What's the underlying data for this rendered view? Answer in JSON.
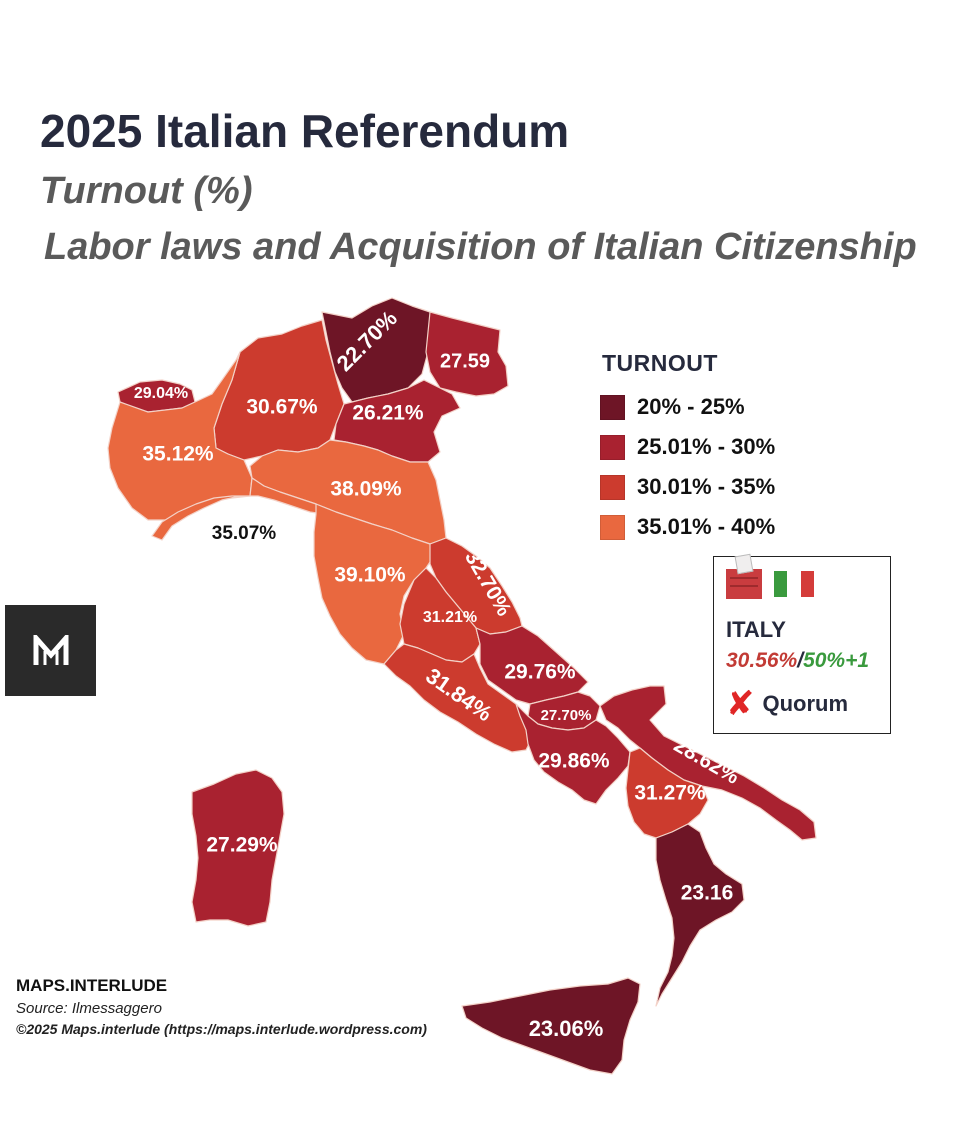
{
  "title": "2025 Italian Referendum",
  "subtitle": "Turnout (%)",
  "subtitle2": "Labor laws and Acquisition of Italian Citizenship",
  "legend": {
    "title": "TURNOUT",
    "items": [
      {
        "label": "20% - 25%",
        "color": "#6e1526"
      },
      {
        "label": "25.01% - 30%",
        "color": "#a92230"
      },
      {
        "label": "30.01% - 35%",
        "color": "#cc3b2e"
      },
      {
        "label": "35.01% - 40%",
        "color": "#e9683f"
      }
    ]
  },
  "regions": [
    {
      "name": "Trentino-Alto Adige",
      "label": "22.70%",
      "value": 22.7,
      "color": "#6e1526"
    },
    {
      "name": "Friuli-Venezia Giulia",
      "label": "27.59",
      "value": 27.59,
      "color": "#a92230"
    },
    {
      "name": "Aosta Valley",
      "label": "29.04%",
      "value": 29.04,
      "color": "#a92230"
    },
    {
      "name": "Lombardy",
      "label": "30.67%",
      "value": 30.67,
      "color": "#cc3b2e"
    },
    {
      "name": "Veneto",
      "label": "26.21%",
      "value": 26.21,
      "color": "#a92230"
    },
    {
      "name": "Piedmont",
      "label": "35.12%",
      "value": 35.12,
      "color": "#e9683f"
    },
    {
      "name": "Emilia-Romagna",
      "label": "38.09%",
      "value": 38.09,
      "color": "#e9683f"
    },
    {
      "name": "Liguria",
      "label": "35.07%",
      "value": 35.07,
      "color": "#e9683f"
    },
    {
      "name": "Tuscany",
      "label": "39.10%",
      "value": 39.1,
      "color": "#e9683f"
    },
    {
      "name": "Marche",
      "label": "32.70%",
      "value": 32.7,
      "color": "#cc3b2e"
    },
    {
      "name": "Umbria",
      "label": "31.21%",
      "value": 31.21,
      "color": "#cc3b2e"
    },
    {
      "name": "Lazio",
      "label": "31.84%",
      "value": 31.84,
      "color": "#cc3b2e"
    },
    {
      "name": "Abruzzo",
      "label": "29.76%",
      "value": 29.76,
      "color": "#a92230"
    },
    {
      "name": "Molise",
      "label": "27.70%",
      "value": 27.7,
      "color": "#a92230"
    },
    {
      "name": "Campania",
      "label": "29.86%",
      "value": 29.86,
      "color": "#a92230"
    },
    {
      "name": "Apulia",
      "label": "28.62%",
      "value": 28.62,
      "color": "#a92230"
    },
    {
      "name": "Basilicata",
      "label": "31.27%",
      "value": 31.27,
      "color": "#cc3b2e"
    },
    {
      "name": "Calabria",
      "label": "23.16",
      "value": 23.16,
      "color": "#6e1526"
    },
    {
      "name": "Sardinia",
      "label": "27.29%",
      "value": 27.29,
      "color": "#a92230"
    },
    {
      "name": "Sicily",
      "label": "23.06%",
      "value": 23.06,
      "color": "#6e1526"
    }
  ],
  "italy_box": {
    "country": "ITALY",
    "turnout": "30.56%",
    "separator": "/",
    "threshold": "50%+1",
    "quorum_label": "Quorum",
    "flag_colors": [
      "#3a9a3e",
      "#ffffff",
      "#d43c3a"
    ]
  },
  "credits": {
    "brand": "MAPS.INTERLUDE",
    "source": "Source: Ilmessaggero",
    "copyright": "©2025 Maps.interlude (https://maps.interlude.wordpress.com)"
  }
}
